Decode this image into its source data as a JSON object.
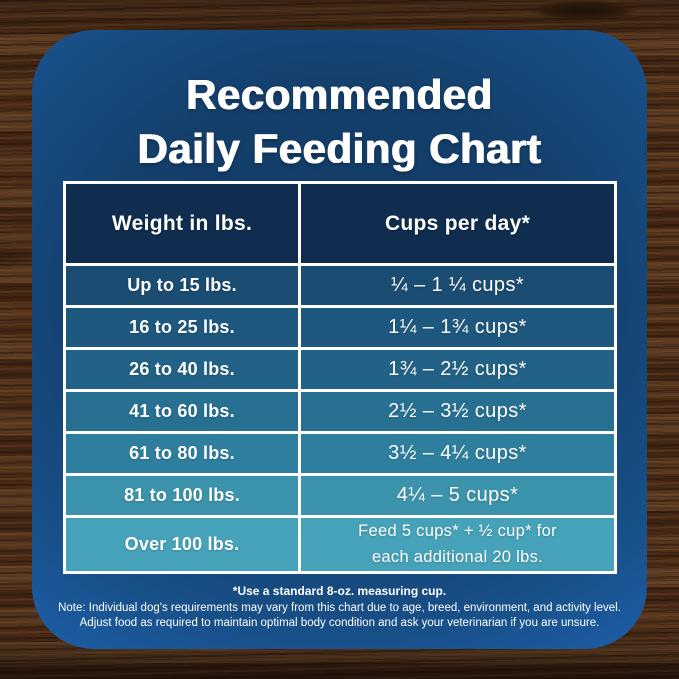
{
  "title": {
    "line1": "Recommended",
    "line2": "Daily Feeding Chart"
  },
  "table": {
    "headers": [
      "Weight in lbs.",
      "Cups per day*"
    ],
    "rows": [
      {
        "weight": "Up to 15 lbs.",
        "cups": [
          "¼ – 1 ¼ cups*"
        ],
        "bg": "#1b4c72"
      },
      {
        "weight": "16 to 25 lbs.",
        "cups": [
          "1¼ – 1¾ cups*"
        ],
        "bg": "#1e587e"
      },
      {
        "weight": "26 to 40 lbs.",
        "cups": [
          "1¾ – 2½ cups*"
        ],
        "bg": "#226286"
      },
      {
        "weight": "41 to 60 lbs.",
        "cups": [
          "2½ – 3½ cups*"
        ],
        "bg": "#277092"
      },
      {
        "weight": "61 to 80 lbs.",
        "cups": [
          "3½ – 4¼ cups*"
        ],
        "bg": "#2e7f9e"
      },
      {
        "weight": "81 to 100 lbs.",
        "cups": [
          "4¼ – 5 cups*"
        ],
        "bg": "#3c93ac"
      },
      {
        "weight": "Over 100 lbs.",
        "cups": [
          "Feed 5 cups* + ½ cup* for",
          "each additional 20 lbs."
        ],
        "bg": "#46a2b9"
      }
    ]
  },
  "footnotes": {
    "line1": "*Use a standard 8-oz. measuring cup.",
    "line2": "Note: Individual dog's requirements may vary from this chart due to age, breed, environment, and activity level.",
    "line3": "Adjust food as required to maintain optimal body condition and ask your veterinarian if you are unsure."
  },
  "colors": {
    "panel_center": "#123c65",
    "panel_edge": "#1e5fa9",
    "header_cell": "#102c4e",
    "grid_lines": "#ffffff",
    "text": "#ffffff",
    "wood_base": "#4f3019"
  },
  "chart_data": {
    "type": "table",
    "title": "Recommended Daily Feeding Chart",
    "columns": [
      "Weight in lbs.",
      "Cups per day*"
    ],
    "rows": [
      [
        "Up to 15 lbs.",
        "¼ – 1 ¼ cups*"
      ],
      [
        "16 to 25 lbs.",
        "1¼ – 1¾ cups*"
      ],
      [
        "26 to 40 lbs.",
        "1¾ – 2½ cups*"
      ],
      [
        "41 to 60 lbs.",
        "2½ – 3½ cups*"
      ],
      [
        "61 to 80 lbs.",
        "3½ – 4¼ cups*"
      ],
      [
        "81 to 100 lbs.",
        "4¼ – 5 cups*"
      ],
      [
        "Over 100 lbs.",
        "Feed 5 cups* + ½ cup* for each additional 20 lbs."
      ]
    ],
    "footnote": "*Use a standard 8-oz. measuring cup."
  }
}
